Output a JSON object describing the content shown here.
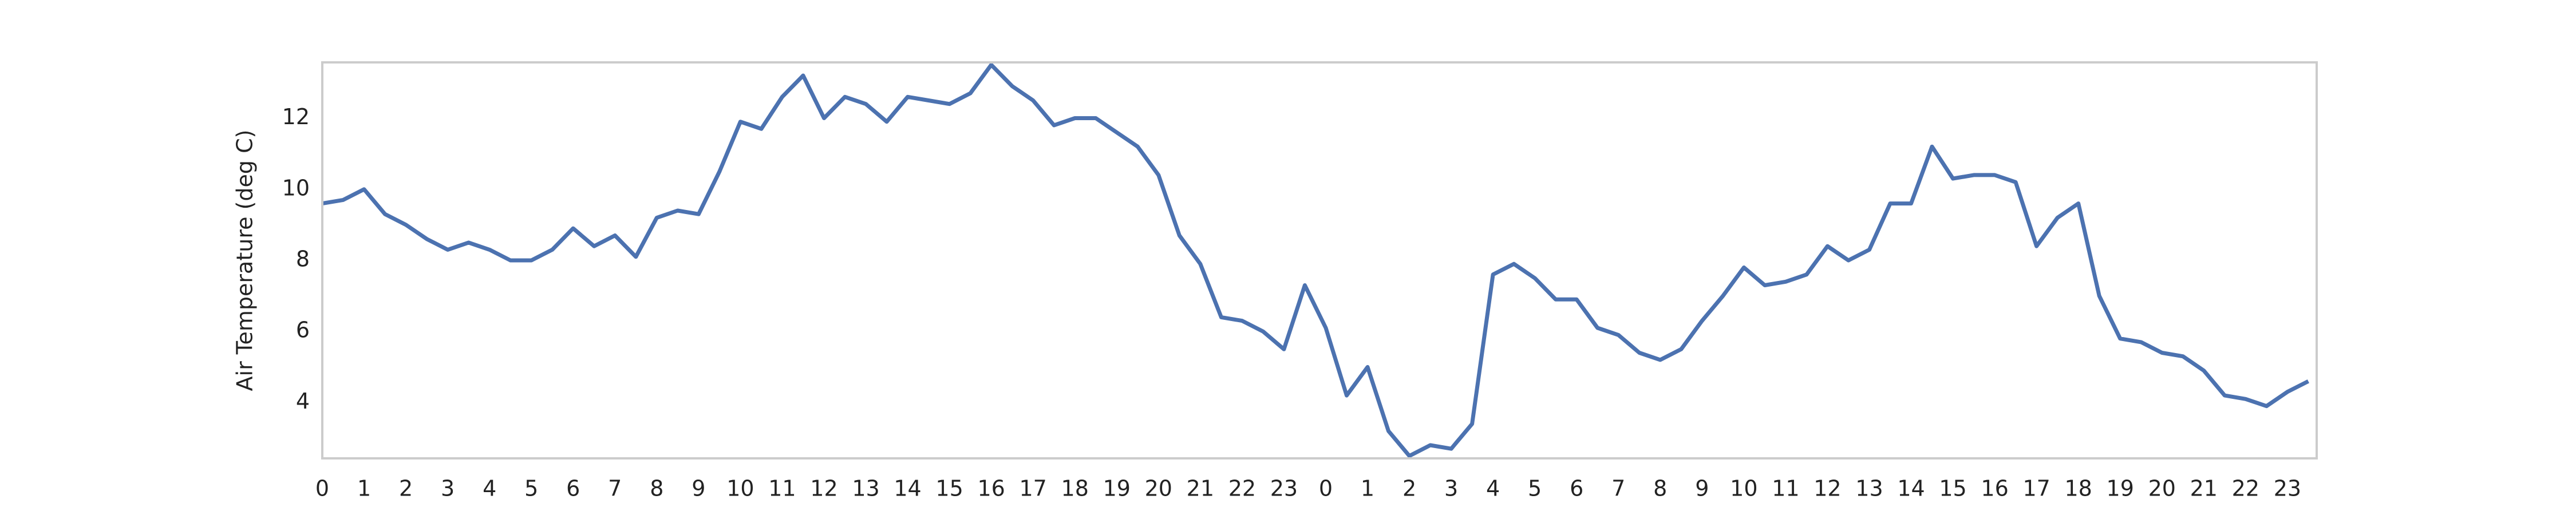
{
  "chart_data": {
    "type": "line",
    "y_label": "Air Temperature (deg C)",
    "x": [
      0,
      0.5,
      1,
      1.5,
      2,
      2.5,
      3,
      3.5,
      4,
      4.5,
      5,
      5.5,
      6,
      6.5,
      7,
      7.5,
      8,
      8.5,
      9,
      9.5,
      10,
      10.5,
      11,
      11.5,
      12,
      12.5,
      13,
      13.5,
      14,
      14.5,
      15,
      15.5,
      16,
      16.5,
      17,
      17.5,
      18,
      18.5,
      19,
      19.5,
      20,
      20.5,
      21,
      21.5,
      22,
      22.5,
      23,
      23.5,
      24,
      24.5,
      25,
      25.5,
      26,
      26.5,
      27,
      27.5,
      28,
      28.5,
      29,
      29.5,
      30,
      30.5,
      31,
      31.5,
      32,
      32.5,
      33,
      33.5,
      34,
      34.5,
      35,
      35.5,
      36,
      36.5,
      37,
      37.5,
      38,
      38.5,
      39,
      39.5,
      40,
      40.5,
      41,
      41.5,
      42,
      42.5,
      43,
      43.5,
      44,
      44.5,
      45,
      45.5,
      46,
      46.5,
      47,
      47.5
    ],
    "series": [
      {
        "name": "Air Temperature",
        "color": "#4c72b0",
        "values": [
          9.6,
          9.7,
          10.0,
          9.3,
          9.0,
          8.6,
          8.3,
          8.5,
          8.3,
          8.0,
          8.0,
          8.3,
          8.9,
          8.4,
          8.7,
          8.1,
          9.2,
          9.4,
          9.3,
          10.5,
          11.9,
          11.7,
          12.6,
          13.2,
          12.0,
          12.6,
          12.4,
          11.9,
          12.6,
          12.5,
          12.4,
          12.7,
          13.5,
          12.9,
          12.5,
          11.8,
          12.0,
          12.0,
          11.6,
          11.2,
          10.4,
          8.7,
          7.9,
          6.4,
          6.3,
          6.0,
          5.5,
          7.3,
          6.1,
          4.2,
          5.0,
          3.2,
          2.5,
          2.8,
          2.7,
          3.4,
          7.6,
          7.9,
          7.5,
          6.9,
          6.9,
          6.1,
          5.9,
          5.4,
          5.2,
          5.5,
          6.3,
          7.0,
          7.8,
          7.3,
          7.4,
          7.6,
          8.4,
          8.0,
          8.3,
          9.6,
          9.6,
          11.2,
          10.3,
          10.4,
          10.4,
          10.2,
          8.4,
          9.2,
          9.6,
          7.0,
          5.8,
          5.7,
          5.4,
          5.3,
          4.9,
          4.2,
          4.1,
          3.9,
          4.3,
          4.6
        ]
      }
    ],
    "xlim": [
      0,
      47.7
    ],
    "xticks": [
      0,
      1,
      2,
      3,
      4,
      5,
      6,
      7,
      8,
      9,
      10,
      11,
      12,
      13,
      14,
      15,
      16,
      17,
      18,
      19,
      20,
      21,
      22,
      23,
      {
        "value": 24,
        "label": "0"
      },
      {
        "value": 25,
        "label": "1"
      },
      {
        "value": 26,
        "label": "2"
      },
      {
        "value": 27,
        "label": "3"
      },
      {
        "value": 28,
        "label": "4"
      },
      {
        "value": 29,
        "label": "5"
      },
      {
        "value": 30,
        "label": "6"
      },
      {
        "value": 31,
        "label": "7"
      },
      {
        "value": 32,
        "label": "8"
      },
      {
        "value": 33,
        "label": "9"
      },
      {
        "value": 34,
        "label": "10"
      },
      {
        "value": 35,
        "label": "11"
      },
      {
        "value": 36,
        "label": "12"
      },
      {
        "value": 37,
        "label": "13"
      },
      {
        "value": 38,
        "label": "14"
      },
      {
        "value": 39,
        "label": "15"
      },
      {
        "value": 40,
        "label": "16"
      },
      {
        "value": 41,
        "label": "17"
      },
      {
        "value": 42,
        "label": "18"
      },
      {
        "value": 43,
        "label": "19"
      },
      {
        "value": 44,
        "label": "20"
      },
      {
        "value": 45,
        "label": "21"
      },
      {
        "value": 46,
        "label": "22"
      },
      {
        "value": 47,
        "label": "23"
      }
    ],
    "ylim": [
      2.43,
      13.57
    ],
    "yticks": [
      4,
      6,
      8,
      10,
      12
    ],
    "grid": false
  }
}
